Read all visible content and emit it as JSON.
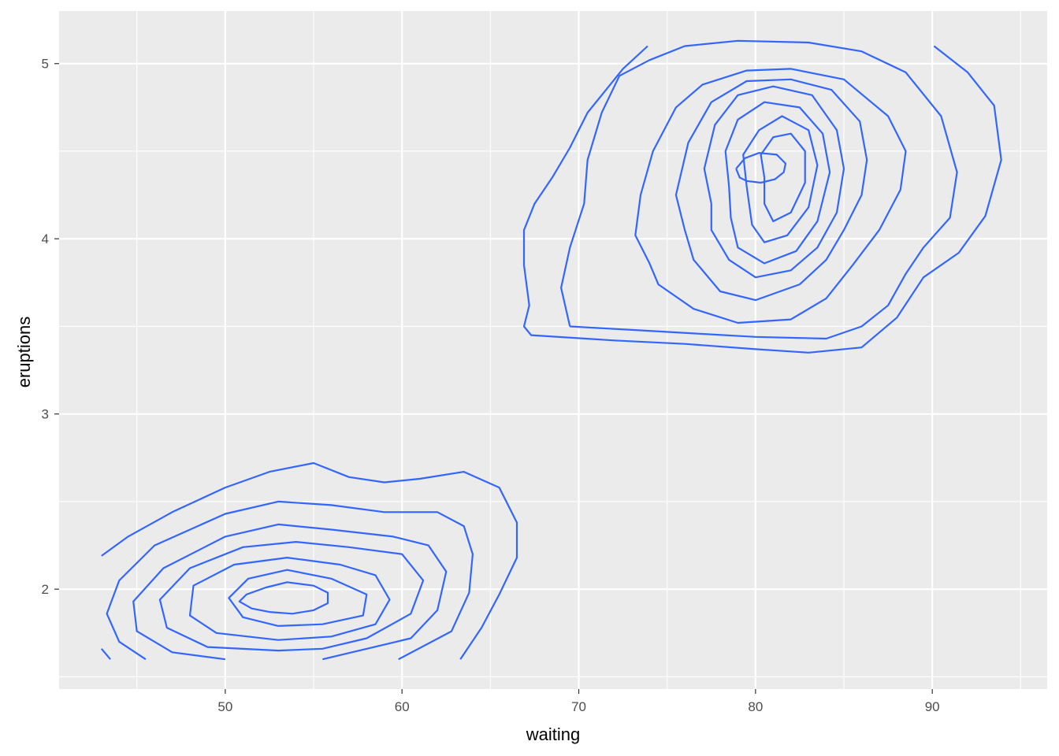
{
  "chart_data": {
    "type": "contour",
    "title": "",
    "xlabel": "waiting",
    "ylabel": "eruptions",
    "xlim": [
      40.6,
      96.5
    ],
    "ylim": [
      1.43,
      5.3
    ],
    "x_ticks": [
      50,
      60,
      70,
      80,
      90
    ],
    "x_tick_labels": [
      "50",
      "60",
      "70",
      "80",
      "90"
    ],
    "x_minor_ticks": [
      45,
      55,
      65,
      75,
      85,
      95
    ],
    "y_ticks": [
      2,
      3,
      4,
      5
    ],
    "y_tick_labels": [
      "2",
      "3",
      "4",
      "5"
    ],
    "y_minor_ticks": [
      1.5,
      2.5,
      3.5,
      4.5
    ],
    "grid": true,
    "legend": "none",
    "colors": {
      "line": "#3366FF",
      "panel": "#EBEBEB",
      "grid": "#FFFFFF",
      "tick_text": "#4D4D4D",
      "axis_title": "#000000"
    },
    "series": [
      {
        "points": [
          [
            43,
            1.66
          ],
          [
            43.5,
            1.6
          ]
        ]
      },
      {
        "points": [
          [
            43,
            2.19
          ],
          [
            44.5,
            2.3
          ],
          [
            47,
            2.44
          ],
          [
            50,
            2.58
          ],
          [
            52.5,
            2.67
          ],
          [
            55,
            2.72
          ],
          [
            57,
            2.64
          ],
          [
            59,
            2.61
          ],
          [
            61,
            2.63
          ],
          [
            63.5,
            2.67
          ],
          [
            65.5,
            2.58
          ],
          [
            66.5,
            2.38
          ],
          [
            66.5,
            2.18
          ],
          [
            65.5,
            1.97
          ],
          [
            64.5,
            1.78
          ],
          [
            63.3,
            1.6
          ]
        ]
      },
      {
        "points": [
          [
            45.5,
            1.6
          ],
          [
            44,
            1.7
          ],
          [
            43.3,
            1.86
          ],
          [
            44,
            2.05
          ],
          [
            46,
            2.25
          ],
          [
            50,
            2.43
          ],
          [
            53,
            2.5
          ],
          [
            56,
            2.48
          ],
          [
            59,
            2.44
          ],
          [
            62,
            2.44
          ],
          [
            63.5,
            2.36
          ],
          [
            64,
            2.2
          ],
          [
            63.8,
            1.98
          ],
          [
            62.8,
            1.76
          ],
          [
            59.8,
            1.6
          ]
        ]
      },
      {
        "points": [
          [
            50,
            1.6
          ],
          [
            47,
            1.64
          ],
          [
            45,
            1.76
          ],
          [
            44.8,
            1.93
          ],
          [
            46.5,
            2.12
          ],
          [
            50,
            2.3
          ],
          [
            53,
            2.37
          ],
          [
            56,
            2.34
          ],
          [
            59.5,
            2.3
          ],
          [
            61.5,
            2.25
          ],
          [
            62.5,
            2.1
          ],
          [
            62,
            1.88
          ],
          [
            60.5,
            1.72
          ],
          [
            55.5,
            1.6
          ]
        ]
      },
      {
        "points": [
          [
            53,
            1.65
          ],
          [
            49,
            1.67
          ],
          [
            46.7,
            1.78
          ],
          [
            46.3,
            1.94
          ],
          [
            48,
            2.12
          ],
          [
            51,
            2.24
          ],
          [
            54,
            2.27
          ],
          [
            57,
            2.24
          ],
          [
            60,
            2.2
          ],
          [
            61.2,
            2.05
          ],
          [
            60.5,
            1.86
          ],
          [
            58,
            1.72
          ],
          [
            55.5,
            1.66
          ],
          [
            53,
            1.65
          ]
        ]
      },
      {
        "points": [
          [
            53,
            1.71
          ],
          [
            49.5,
            1.75
          ],
          [
            48,
            1.85
          ],
          [
            48.2,
            2.02
          ],
          [
            50.5,
            2.14
          ],
          [
            53.5,
            2.18
          ],
          [
            56.5,
            2.14
          ],
          [
            58.5,
            2.08
          ],
          [
            59.3,
            1.94
          ],
          [
            58.5,
            1.8
          ],
          [
            56,
            1.73
          ],
          [
            53,
            1.71
          ]
        ]
      },
      {
        "points": [
          [
            53,
            1.79
          ],
          [
            51,
            1.84
          ],
          [
            50.2,
            1.95
          ],
          [
            51.3,
            2.06
          ],
          [
            53.5,
            2.11
          ],
          [
            56,
            2.06
          ],
          [
            58,
            1.97
          ],
          [
            57.8,
            1.85
          ],
          [
            55.5,
            1.8
          ],
          [
            53,
            1.79
          ]
        ]
      },
      {
        "points": [
          [
            52.5,
            1.87
          ],
          [
            51.5,
            1.89
          ],
          [
            50.8,
            1.93
          ],
          [
            51.2,
            1.97
          ],
          [
            52.3,
            2.01
          ],
          [
            53.5,
            2.04
          ],
          [
            55,
            2.02
          ],
          [
            55.8,
            1.98
          ],
          [
            55.8,
            1.92
          ],
          [
            55,
            1.88
          ],
          [
            53.8,
            1.86
          ],
          [
            52.5,
            1.87
          ]
        ]
      },
      {
        "points": [
          [
            73.9,
            5.1
          ],
          [
            72.5,
            4.97
          ],
          [
            70.5,
            4.72
          ],
          [
            69.5,
            4.52
          ],
          [
            68.5,
            4.35
          ],
          [
            67.5,
            4.2
          ],
          [
            66.9,
            4.05
          ],
          [
            66.9,
            3.85
          ],
          [
            67.2,
            3.62
          ],
          [
            66.9,
            3.5
          ],
          [
            67.3,
            3.45
          ],
          [
            72,
            3.42
          ],
          [
            76,
            3.4
          ],
          [
            80,
            3.37
          ],
          [
            83,
            3.35
          ],
          [
            86,
            3.38
          ],
          [
            88,
            3.55
          ],
          [
            89.5,
            3.78
          ],
          [
            91.5,
            3.92
          ],
          [
            93,
            4.13
          ],
          [
            93.9,
            4.45
          ],
          [
            93.5,
            4.76
          ],
          [
            92,
            4.95
          ],
          [
            90.1,
            5.1
          ]
        ]
      },
      {
        "points": [
          [
            69.5,
            3.5
          ],
          [
            69,
            3.72
          ],
          [
            69.5,
            3.95
          ],
          [
            70.3,
            4.2
          ],
          [
            70.5,
            4.45
          ],
          [
            71.3,
            4.72
          ],
          [
            72.3,
            4.93
          ],
          [
            74,
            5.02
          ],
          [
            76,
            5.1
          ],
          [
            79,
            5.13
          ],
          [
            83,
            5.12
          ],
          [
            86,
            5.07
          ],
          [
            88.5,
            4.95
          ],
          [
            90.5,
            4.7
          ],
          [
            91.4,
            4.38
          ],
          [
            91,
            4.12
          ],
          [
            89.5,
            3.95
          ],
          [
            88.5,
            3.8
          ],
          [
            87.5,
            3.62
          ],
          [
            86,
            3.5
          ],
          [
            84,
            3.43
          ],
          [
            80,
            3.44
          ],
          [
            76.5,
            3.46
          ],
          [
            73,
            3.48
          ],
          [
            69.5,
            3.5
          ]
        ]
      },
      {
        "points": [
          [
            74,
            3.86
          ],
          [
            73.2,
            4.02
          ],
          [
            73.5,
            4.25
          ],
          [
            74.2,
            4.5
          ],
          [
            75.5,
            4.75
          ],
          [
            77,
            4.88
          ],
          [
            79.5,
            4.96
          ],
          [
            82,
            4.97
          ],
          [
            85,
            4.91
          ],
          [
            87.5,
            4.7
          ],
          [
            88.5,
            4.5
          ],
          [
            88.2,
            4.28
          ],
          [
            87,
            4.05
          ],
          [
            85.5,
            3.85
          ],
          [
            84,
            3.66
          ],
          [
            82,
            3.54
          ],
          [
            79,
            3.52
          ],
          [
            76.5,
            3.6
          ],
          [
            74.5,
            3.74
          ],
          [
            74,
            3.86
          ]
        ]
      },
      {
        "points": [
          [
            76,
            4.05
          ],
          [
            75.5,
            4.25
          ],
          [
            76.2,
            4.55
          ],
          [
            77.5,
            4.78
          ],
          [
            79.5,
            4.9
          ],
          [
            82,
            4.91
          ],
          [
            84.3,
            4.85
          ],
          [
            85.9,
            4.67
          ],
          [
            86.3,
            4.45
          ],
          [
            86,
            4.25
          ],
          [
            85,
            4.05
          ],
          [
            84,
            3.88
          ],
          [
            82.5,
            3.74
          ],
          [
            80,
            3.65
          ],
          [
            78,
            3.7
          ],
          [
            76.5,
            3.88
          ],
          [
            76,
            4.05
          ]
        ]
      },
      {
        "points": [
          [
            77.5,
            4.2
          ],
          [
            77.1,
            4.4
          ],
          [
            77.7,
            4.65
          ],
          [
            79,
            4.82
          ],
          [
            81,
            4.87
          ],
          [
            83.2,
            4.82
          ],
          [
            84.6,
            4.62
          ],
          [
            85,
            4.4
          ],
          [
            84.6,
            4.15
          ],
          [
            83.5,
            3.95
          ],
          [
            82,
            3.82
          ],
          [
            80,
            3.78
          ],
          [
            78.5,
            3.88
          ],
          [
            77.5,
            4.05
          ],
          [
            77.5,
            4.2
          ]
        ]
      },
      {
        "points": [
          [
            78.5,
            4.3
          ],
          [
            78.3,
            4.5
          ],
          [
            79,
            4.68
          ],
          [
            80.5,
            4.78
          ],
          [
            82.5,
            4.75
          ],
          [
            83.8,
            4.6
          ],
          [
            84.2,
            4.38
          ],
          [
            83.5,
            4.1
          ],
          [
            82.3,
            3.93
          ],
          [
            80.5,
            3.86
          ],
          [
            79,
            3.95
          ],
          [
            78.6,
            4.12
          ],
          [
            78.5,
            4.3
          ]
        ]
      },
      {
        "points": [
          [
            79.5,
            4.3
          ],
          [
            79.3,
            4.48
          ],
          [
            80.2,
            4.62
          ],
          [
            81.5,
            4.7
          ],
          [
            83,
            4.62
          ],
          [
            83.5,
            4.42
          ],
          [
            83,
            4.18
          ],
          [
            81.8,
            4.02
          ],
          [
            80.5,
            3.98
          ],
          [
            79.8,
            4.08
          ],
          [
            79.5,
            4.3
          ]
        ]
      },
      {
        "points": [
          [
            80.5,
            4.35
          ],
          [
            80.3,
            4.48
          ],
          [
            81,
            4.58
          ],
          [
            82,
            4.6
          ],
          [
            82.8,
            4.5
          ],
          [
            82.8,
            4.32
          ],
          [
            82,
            4.15
          ],
          [
            81,
            4.1
          ],
          [
            80.5,
            4.2
          ],
          [
            80.5,
            4.35
          ]
        ]
      },
      {
        "points": [
          [
            78.9,
            4.4
          ],
          [
            79.4,
            4.46
          ],
          [
            80.2,
            4.49
          ],
          [
            81.2,
            4.48
          ],
          [
            81.7,
            4.43
          ],
          [
            81.6,
            4.38
          ],
          [
            81.1,
            4.34
          ],
          [
            80.3,
            4.32
          ],
          [
            79.5,
            4.33
          ],
          [
            79.1,
            4.35
          ],
          [
            78.9,
            4.4
          ]
        ]
      }
    ]
  }
}
